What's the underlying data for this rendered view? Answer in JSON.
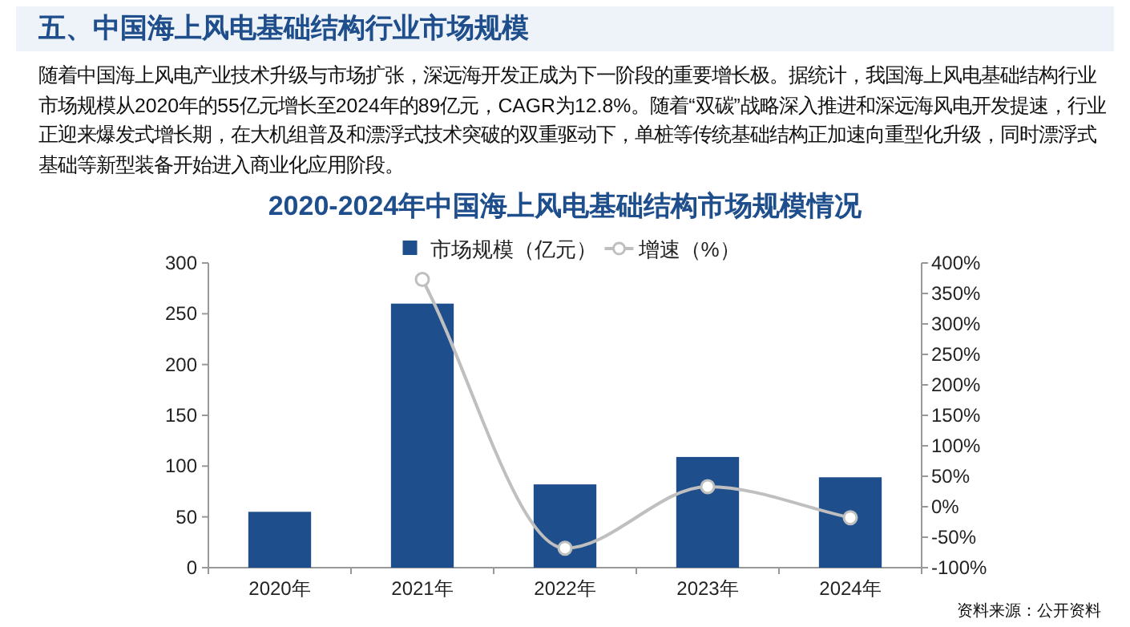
{
  "chart_data": {
    "type": "bar",
    "title": "2020-2024年中国海上风电基础结构市场规模情况",
    "annotations": [
      "五、中国海上风电基础结构行业市场规模",
      "随着中国海上风电产业技术升级与市场扩张，深远海开发正成为下一阶段的重要增长极。据统计，我国海上风电基础结构行业市场规模从2020年的55亿元增长至2024年的89亿元，CAGR为12.8%。随着“双碳”战略深入推进和深远海风电开发提速，行业正迎来爆发式增长期，在大机组普及和漂浮式技术突破的双重驱动下，单桩等传统基础结构正加速向重型化升级，同时漂浮式基础等新型装备开始进入商业化应用阶段。",
      "资料来源：公开资料"
    ],
    "categories": [
      "2020年",
      "2021年",
      "2022年",
      "2023年",
      "2024年"
    ],
    "series": [
      {
        "name": "市场规模（亿元）",
        "color": "#1f4e8c",
        "values": [
          55,
          260,
          82,
          109,
          89
        ]
      },
      {
        "name": "增速（%）",
        "type": "line",
        "axis": "y2",
        "color": "#bfbfbf",
        "marker": "circle",
        "values": [
          null,
          373,
          -68,
          33,
          -18
        ]
      }
    ],
    "ylim": [
      0,
      300
    ],
    "yticks": [
      0,
      50,
      100,
      150,
      200,
      250,
      300
    ],
    "y2lim": [
      -100,
      400
    ],
    "y2ticks": [
      {
        "value": -100,
        "label": "-100%"
      },
      {
        "value": -50,
        "label": "-50%"
      },
      {
        "value": 0,
        "label": "0%"
      },
      {
        "value": 50,
        "label": "50%"
      },
      {
        "value": 100,
        "label": "100%"
      },
      {
        "value": 150,
        "label": "150%"
      },
      {
        "value": 200,
        "label": "200%"
      },
      {
        "value": 250,
        "label": "250%"
      },
      {
        "value": 300,
        "label": "300%"
      },
      {
        "value": 350,
        "label": "350%"
      },
      {
        "value": 400,
        "label": "400%"
      }
    ],
    "legend": "top",
    "grid": false
  }
}
